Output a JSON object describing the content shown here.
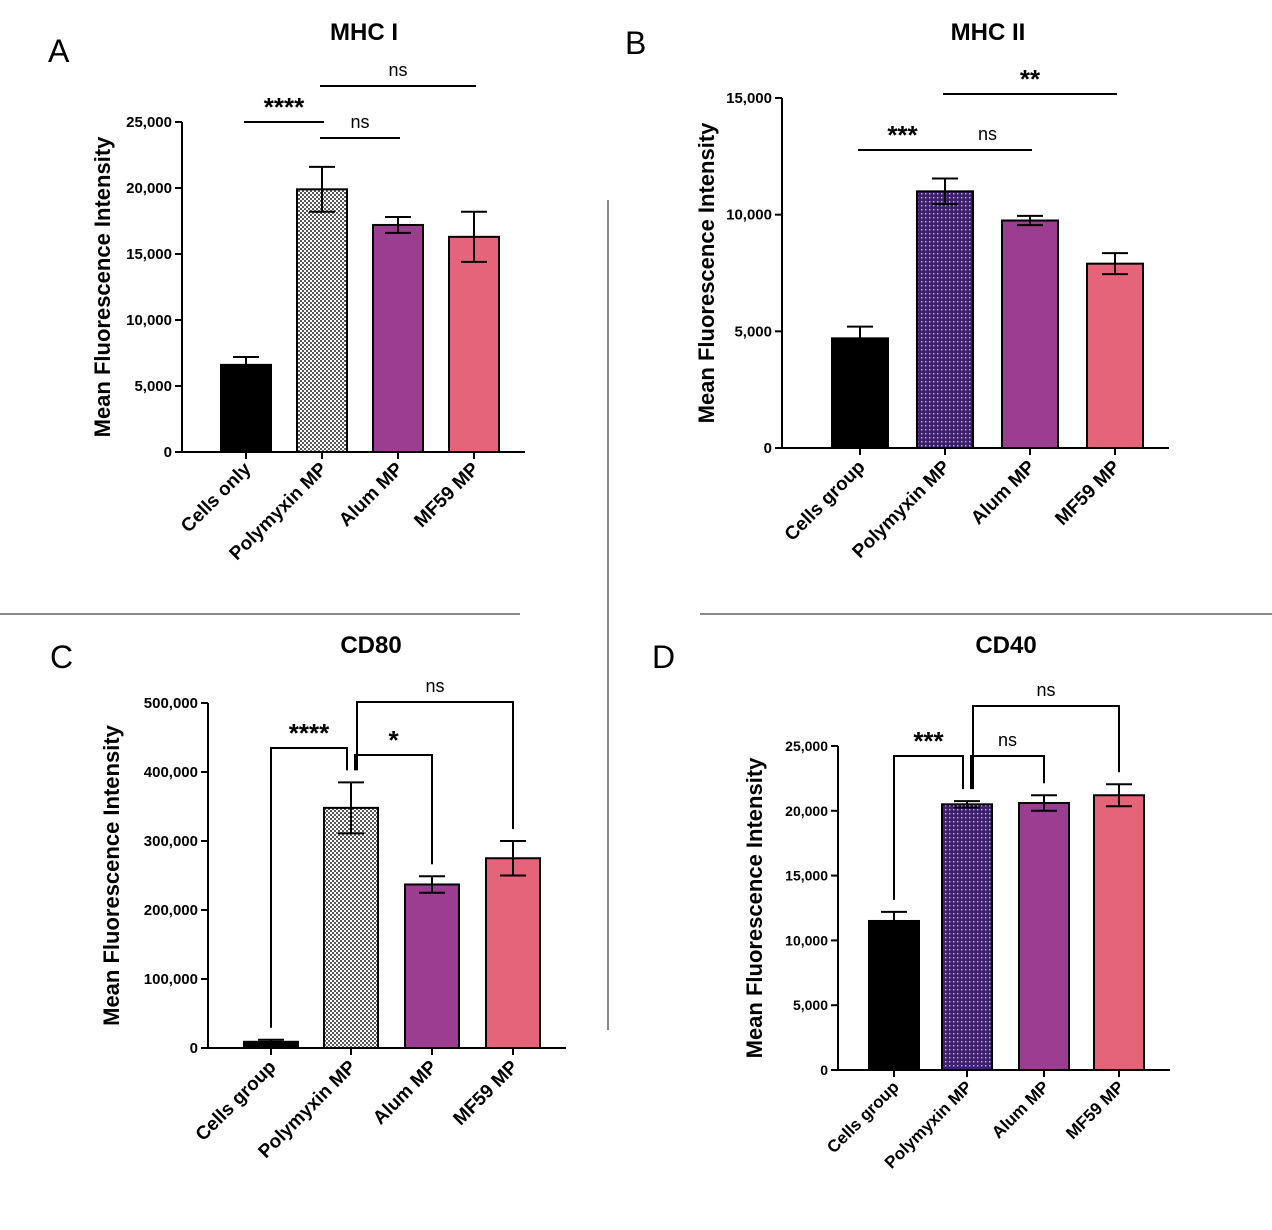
{
  "colors": {
    "cells": "#000000",
    "polymyxin_gray": "#9a9a9a",
    "polymyxin_purple": "#3d1f6e",
    "alum": "#9b3d91",
    "mf59": "#e5647a",
    "divider": "#8a8a8a"
  },
  "chart_data": [
    {
      "panel": "A",
      "type": "bar",
      "title": "MHC I",
      "ylabel": "Mean Fluorescence Intensity",
      "xlabel": "",
      "ylim": [
        0,
        25000
      ],
      "yticks": [
        0,
        5000,
        10000,
        15000,
        20000,
        25000
      ],
      "ytick_labels": [
        "0",
        "5,000",
        "10,000",
        "15,000",
        "20,000",
        "25,000"
      ],
      "categories": [
        "Cells only",
        "Polymyxin MP",
        "Alum MP",
        "MF59 MP"
      ],
      "values": [
        6600,
        19900,
        17200,
        16300
      ],
      "errors": [
        600,
        1700,
        600,
        1900
      ],
      "fills": [
        "solid",
        "check",
        "solid",
        "solid"
      ],
      "bar_colors": [
        "#000000",
        "#9a9a9a",
        "#9b3d91",
        "#e5647a"
      ],
      "comparisons": [
        {
          "from": 0,
          "to": 1,
          "label": "****",
          "style": "line"
        },
        {
          "from": 1,
          "to": 2,
          "label": "ns",
          "style": "line"
        },
        {
          "from": 1,
          "to": 3,
          "label": "ns",
          "style": "line"
        }
      ]
    },
    {
      "panel": "B",
      "type": "bar",
      "title": "MHC II",
      "ylabel": "Mean Fluorescence Intensity",
      "xlabel": "",
      "ylim": [
        0,
        15000
      ],
      "yticks": [
        0,
        5000,
        10000,
        15000
      ],
      "ytick_labels": [
        "0",
        "5,000",
        "10,000",
        "15,000"
      ],
      "categories": [
        "Cells group",
        "Polymyxin MP",
        "Alum MP",
        "MF59 MP"
      ],
      "values": [
        4700,
        11000,
        9750,
        7900
      ],
      "errors": [
        500,
        550,
        200,
        450
      ],
      "fills": [
        "solid",
        "dots",
        "solid",
        "solid"
      ],
      "bar_colors": [
        "#000000",
        "#3d1f6e",
        "#9b3d91",
        "#e5647a"
      ],
      "comparisons": [
        {
          "from": 0,
          "to": 1,
          "label": "***",
          "style": "line"
        },
        {
          "from": 1,
          "to": 2,
          "label": "ns",
          "style": "line"
        },
        {
          "from": 1,
          "to": 3,
          "label": "**",
          "style": "line"
        }
      ]
    },
    {
      "panel": "C",
      "type": "bar",
      "title": "CD80",
      "ylabel": "Mean Fluorescence Intensity",
      "xlabel": "",
      "ylim": [
        0,
        500000
      ],
      "yticks": [
        0,
        100000,
        200000,
        300000,
        400000,
        500000
      ],
      "ytick_labels": [
        "0",
        "100,000",
        "200,000",
        "300,000",
        "400,000",
        "500,000"
      ],
      "categories": [
        "Cells group",
        "Polymyxin MP",
        "Alum MP",
        "MF59 MP"
      ],
      "values": [
        9000,
        348000,
        237000,
        275000
      ],
      "errors": [
        3000,
        37000,
        12000,
        25000
      ],
      "fills": [
        "solid",
        "check",
        "solid",
        "solid"
      ],
      "bar_colors": [
        "#000000",
        "#9a9a9a",
        "#9b3d91",
        "#e5647a"
      ],
      "comparisons": [
        {
          "from": 0,
          "to": 1,
          "label": "****",
          "style": "bracket"
        },
        {
          "from": 1,
          "to": 2,
          "label": "*",
          "style": "bracket"
        },
        {
          "from": 1,
          "to": 3,
          "label": "ns",
          "style": "bracket"
        }
      ]
    },
    {
      "panel": "D",
      "type": "bar",
      "title": "CD40",
      "ylabel": "Mean Fluorescence Intensity",
      "xlabel": "",
      "ylim": [
        0,
        25000
      ],
      "yticks": [
        0,
        5000,
        10000,
        15000,
        20000,
        25000
      ],
      "ytick_labels": [
        "0",
        "5,000",
        "10,000",
        "15,000",
        "20,000",
        "25,000"
      ],
      "categories": [
        "Cells group",
        "Polymyxin MP",
        "Alum MP",
        "MF59 MP"
      ],
      "values": [
        11500,
        20500,
        20600,
        21200
      ],
      "errors": [
        700,
        250,
        600,
        850
      ],
      "fills": [
        "solid",
        "dots",
        "solid",
        "solid"
      ],
      "bar_colors": [
        "#000000",
        "#3d1f6e",
        "#9b3d91",
        "#e5647a"
      ],
      "comparisons": [
        {
          "from": 0,
          "to": 1,
          "label": "***",
          "style": "bracket"
        },
        {
          "from": 1,
          "to": 2,
          "label": "ns",
          "style": "bracket"
        },
        {
          "from": 1,
          "to": 3,
          "label": "ns",
          "style": "bracket"
        }
      ]
    }
  ]
}
